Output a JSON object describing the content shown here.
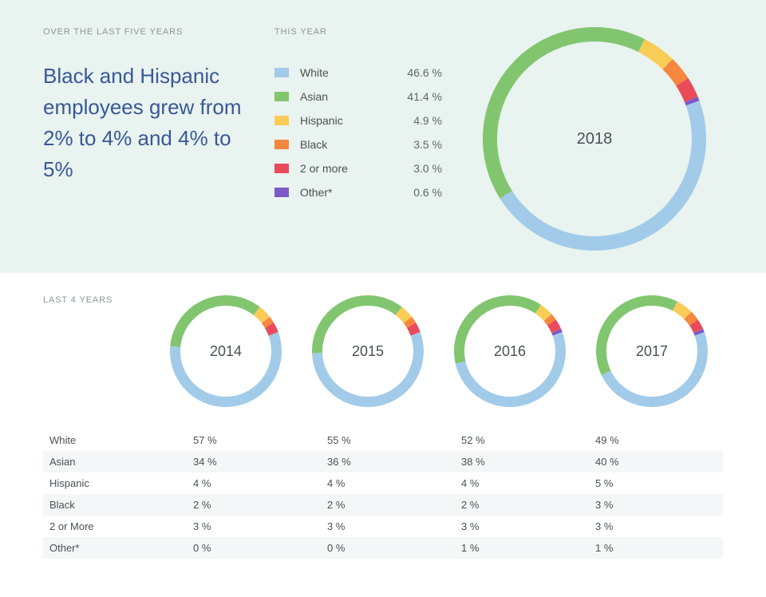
{
  "colors": {
    "bg_top": "#e9f3ef",
    "bg_bottom": "#ffffff",
    "label_muted": "#90949c",
    "headline": "#385898",
    "body_text": "#4b4f56",
    "row_stripe": "#f5f6f7"
  },
  "categories": [
    {
      "key": "white",
      "label": "White",
      "color": "#a2cbe9"
    },
    {
      "key": "asian",
      "label": "Asian",
      "color": "#81c66f"
    },
    {
      "key": "hispanic",
      "label": "Hispanic",
      "color": "#f9cc58"
    },
    {
      "key": "black",
      "label": "Black",
      "color": "#f5873e"
    },
    {
      "key": "twoormore",
      "label": "2 or more",
      "color": "#e94b5b"
    },
    {
      "key": "other",
      "label": "Other*",
      "color": "#7c5ac6"
    }
  ],
  "top": {
    "label": "OVER THE LAST FIVE YEARS",
    "headline": "Black and Hispanic employees grew from 2% to 4% and 4% to 5%",
    "this_year_label": "THIS YEAR",
    "year_label": "2018",
    "values": [
      46.6,
      41.4,
      4.9,
      3.5,
      3.0,
      0.6
    ],
    "value_strings": [
      "46.6 %",
      "41.4 %",
      "4.9 %",
      "3.5 %",
      "3.0 %",
      "0.6 %"
    ],
    "donut": {
      "outer_r": 140,
      "inner_r": 122,
      "start_deg": 70
    }
  },
  "history": {
    "label": "LAST 4 YEARS",
    "donut": {
      "outer_r": 70,
      "inner_r": 57,
      "start_deg": 70
    },
    "row_labels": [
      "White",
      "Asian",
      "Hispanic",
      "Black",
      "2 or More",
      "Other*"
    ],
    "years": [
      {
        "year": "2014",
        "values": [
          57,
          34,
          4,
          2,
          3,
          0
        ],
        "value_strings": [
          "57 %",
          "34 %",
          "4 %",
          "2 %",
          "3 %",
          "0 %"
        ]
      },
      {
        "year": "2015",
        "values": [
          55,
          36,
          4,
          2,
          3,
          0
        ],
        "value_strings": [
          "55 %",
          "36 %",
          "4 %",
          "2 %",
          "3 %",
          "0 %"
        ]
      },
      {
        "year": "2016",
        "values": [
          52,
          38,
          4,
          2,
          3,
          1
        ],
        "value_strings": [
          "52 %",
          "38 %",
          "4 %",
          "2 %",
          "3 %",
          "1 %"
        ]
      },
      {
        "year": "2017",
        "values": [
          49,
          40,
          5,
          3,
          3,
          1
        ],
        "value_strings": [
          "49 %",
          "40 %",
          "5 %",
          "3 %",
          "3 %",
          "1 %"
        ]
      }
    ]
  }
}
